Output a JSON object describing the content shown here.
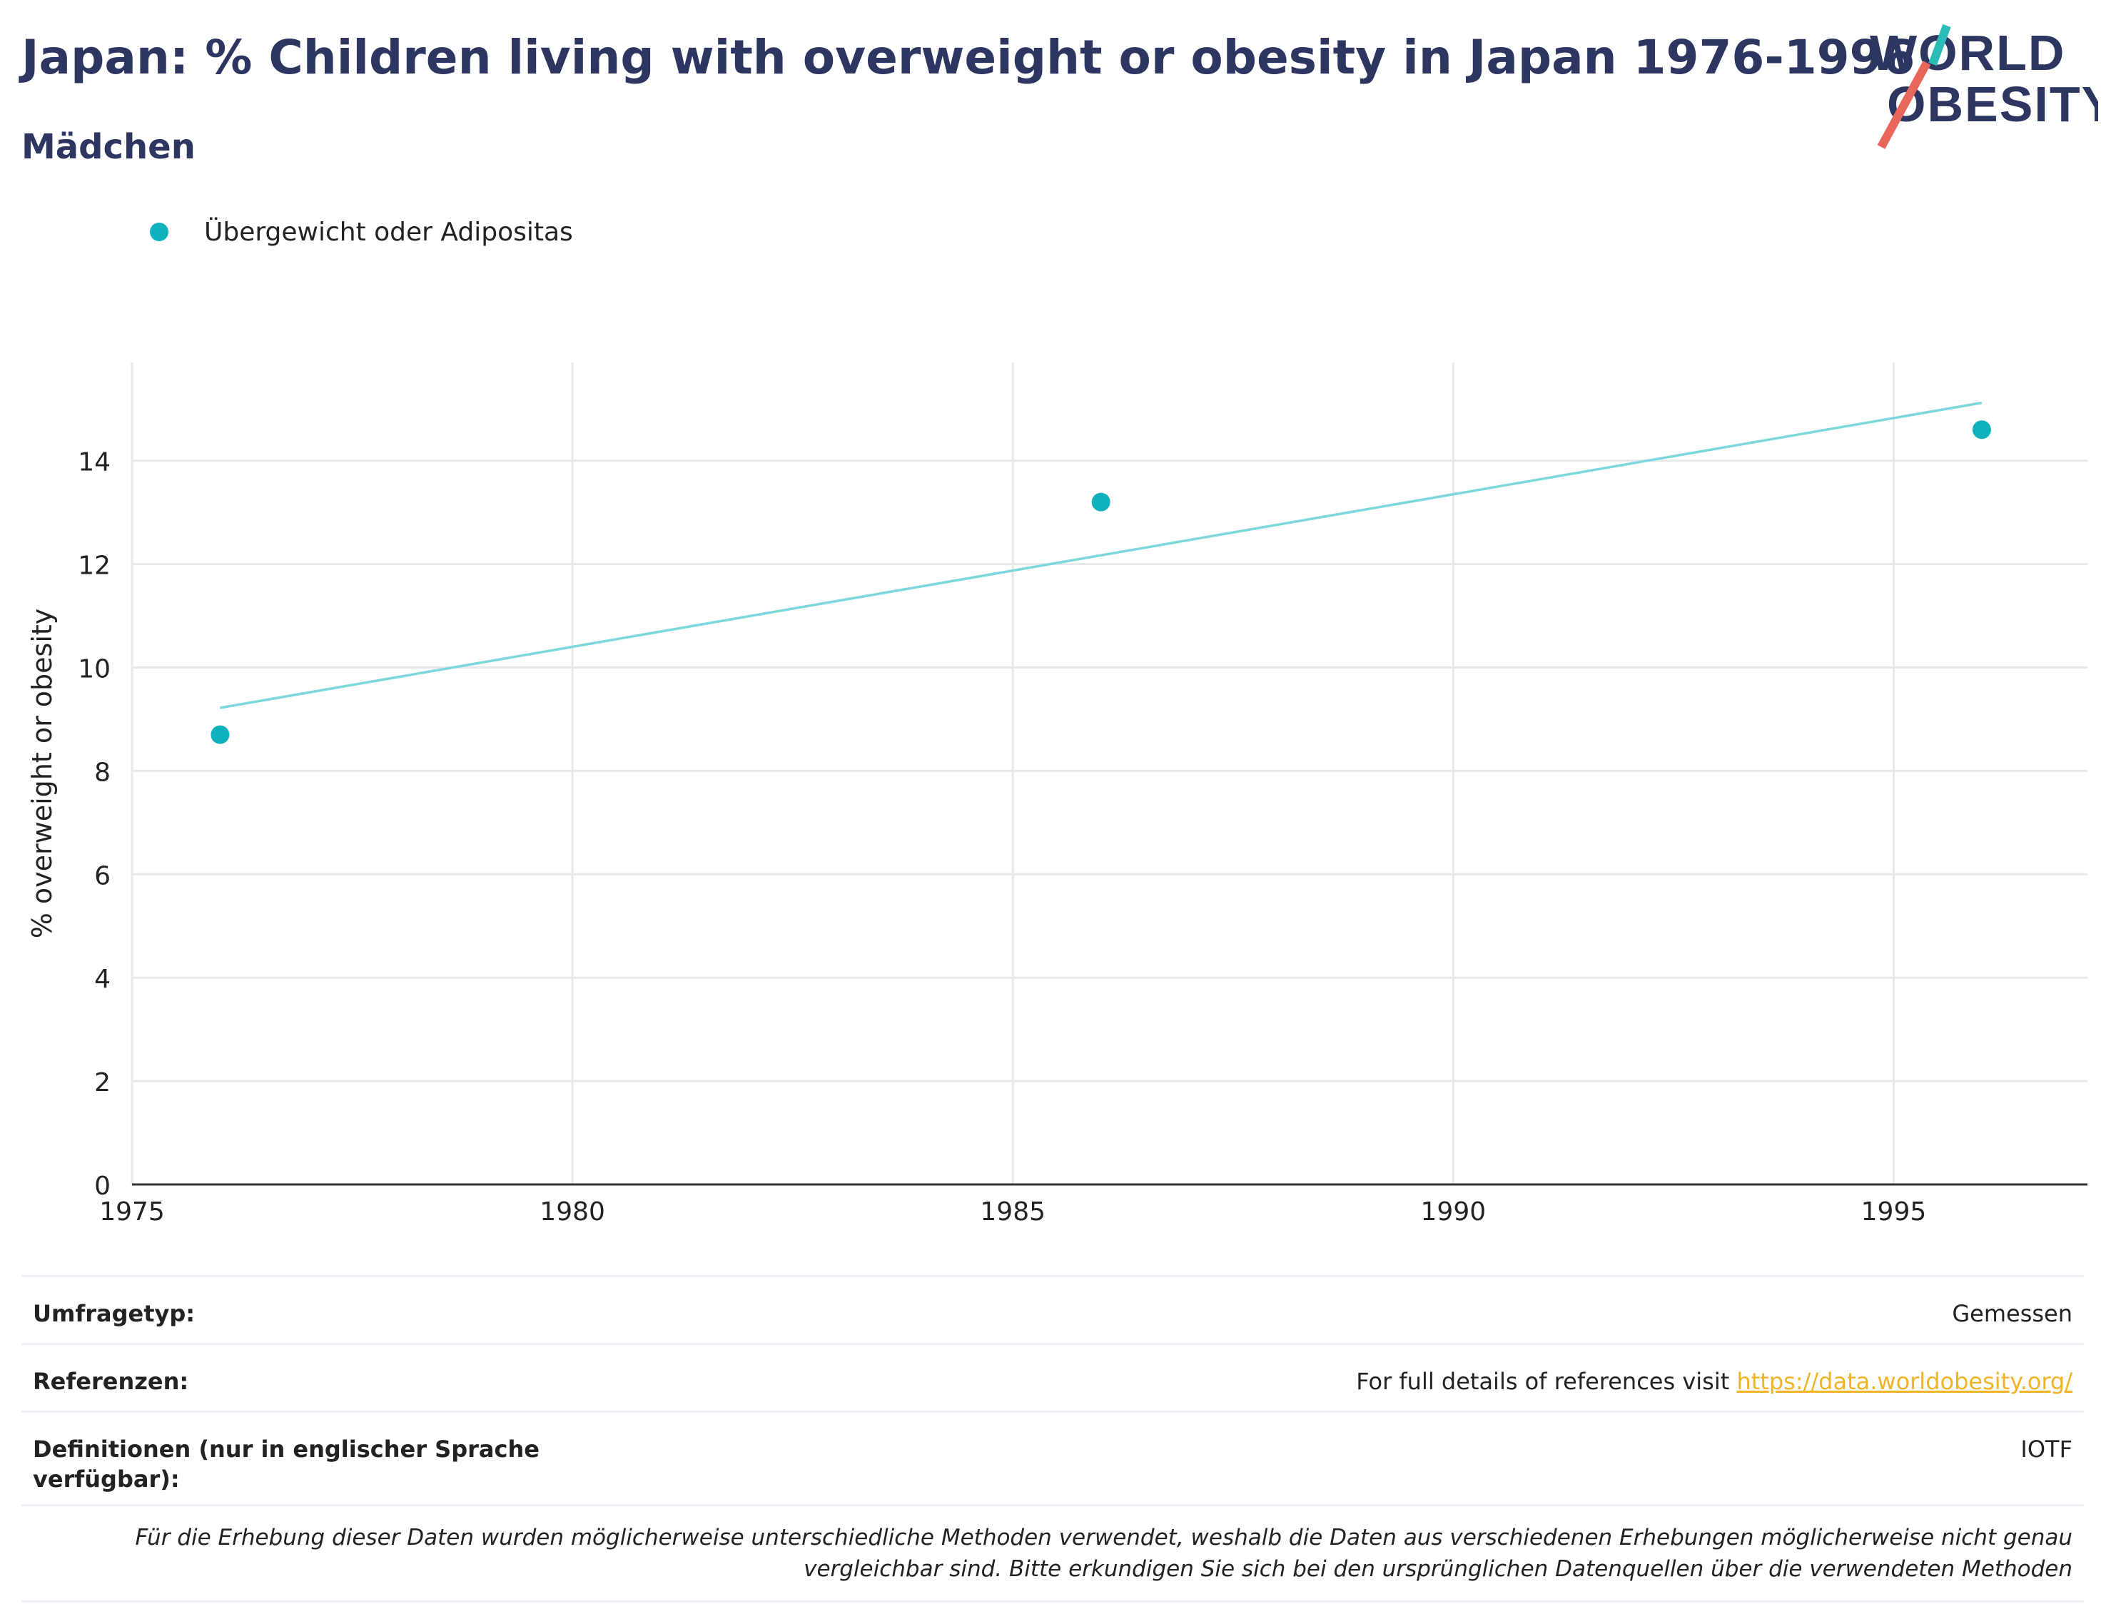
{
  "header": {
    "title": "Japan: % Children living with overweight or obesity in Japan 1976-1996",
    "subtitle": "Mädchen"
  },
  "logo": {
    "line1": "WORLD",
    "line2": "OBESITY",
    "accent_teal": "#2bbcb8",
    "accent_coral": "#e8675a",
    "text_color": "#2d3561"
  },
  "legend": {
    "label": "Übergewicht oder Adipositas"
  },
  "chart_data": {
    "type": "scatter",
    "title": "",
    "xlabel": "",
    "ylabel": "% overweight or obesity",
    "xlim": [
      1975,
      1997.2
    ],
    "ylim": [
      0,
      15.9
    ],
    "x_ticks": [
      1975,
      1980,
      1985,
      1990,
      1995
    ],
    "y_ticks": [
      0,
      2,
      4,
      6,
      8,
      10,
      12,
      14
    ],
    "grid": true,
    "legend_position": "top-left",
    "series": [
      {
        "name": "Übergewicht oder Adipositas",
        "color": "#0fb1bd",
        "points": [
          {
            "x": 1976,
            "y": 8.7
          },
          {
            "x": 1986,
            "y": 13.2
          },
          {
            "x": 1996,
            "y": 14.6
          }
        ],
        "trendline": {
          "x": [
            1976,
            1996
          ],
          "y": [
            9.22,
            15.12
          ],
          "color": "#7dd7dd"
        }
      }
    ]
  },
  "meta": {
    "survey_type_label": "Umfragetyp:",
    "survey_type_value": "Gemessen",
    "references_label": "Referenzen:",
    "references_text": "For full details of references visit",
    "references_link": "https://data.worldobesity.org/",
    "definitions_label": "Definitionen (nur in englischer Sprache verfügbar):",
    "definitions_value": "IOTF",
    "note": "Für die Erhebung dieser Daten wurden möglicherweise unterschiedliche Methoden verwendet, weshalb die Daten aus verschiedenen Erhebungen möglicherweise nicht genau vergleichbar sind. Bitte erkundigen Sie sich bei den ursprünglichen Datenquellen über die verwendeten Methoden"
  }
}
